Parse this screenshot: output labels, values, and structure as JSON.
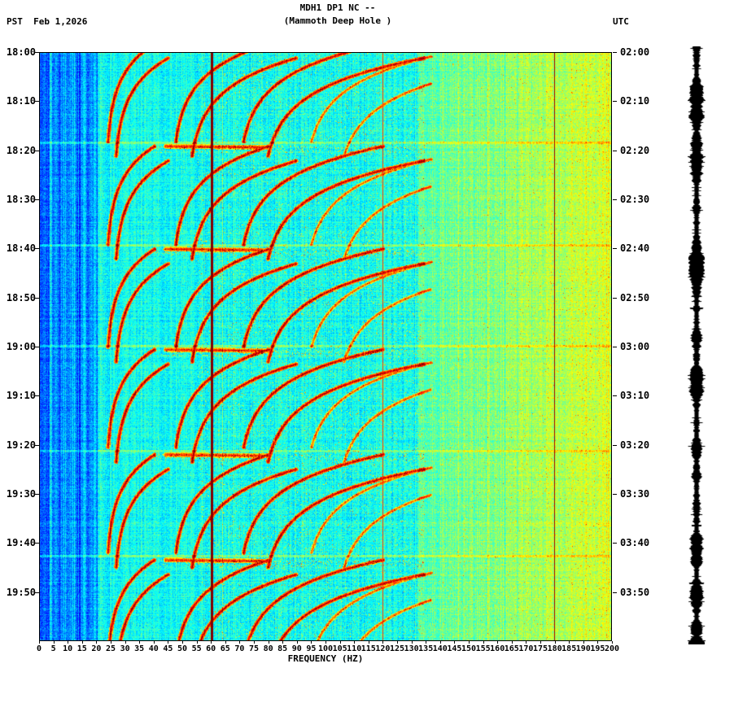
{
  "header": {
    "title_line1": "MDH1 DP1 NC --",
    "title_line2": "(Mammoth Deep Hole )",
    "left_label": "PST  Feb 1,2026",
    "right_label": "UTC"
  },
  "chart_data": {
    "type": "heatmap",
    "title": "MDH1 DP1 NC -- (Mammoth Deep Hole )",
    "xlabel": "FREQUENCY (HZ)",
    "colormap": "jet",
    "x_axis": {
      "min": 0,
      "max": 200,
      "ticks": [
        "0",
        "5",
        "10",
        "15",
        "20",
        "25",
        "30",
        "35",
        "40",
        "45",
        "50",
        "55",
        "60",
        "65",
        "70",
        "75",
        "80",
        "85",
        "90",
        "95",
        "100",
        "105",
        "110",
        "115",
        "120",
        "125",
        "130",
        "135",
        "140",
        "145",
        "150",
        "155",
        "160",
        "165",
        "170",
        "175",
        "180",
        "185",
        "190",
        "195",
        "200"
      ]
    },
    "y_axis": {
      "left_timezone": "PST",
      "right_timezone": "UTC",
      "date": "Feb 1,2026",
      "minutes_per_division": 10,
      "time_span_min": 120,
      "left_times": [
        "18:00",
        "18:10",
        "18:20",
        "18:30",
        "18:40",
        "18:50",
        "19:00",
        "19:10",
        "19:20",
        "19:30",
        "19:40",
        "19:50"
      ],
      "right_times": [
        "02:00",
        "02:10",
        "02:20",
        "02:30",
        "02:40",
        "02:50",
        "03:00",
        "03:10",
        "03:20",
        "03:30",
        "03:40",
        "03:50"
      ]
    },
    "features": {
      "background_profile": "dark blue 0-3 Hz, blue 3-20 Hz, cyan 20-130 Hz, green-yellow 130-200 Hz",
      "power_line_hz": 60,
      "power_line_harmonic_hz": 120,
      "faint_vertical_line_hz": 180,
      "tremor_onsets_min": [
        -2,
        19,
        40,
        60.5,
        82,
        103.5
      ],
      "glide_fundamental_start_hz": 40,
      "glide_fundamental_end_hz": 23,
      "glide_harmonics": 4,
      "glide_duration_min": 20,
      "onset_band_hz": [
        44,
        80
      ]
    },
    "trace": {
      "description": "seismogram amplitude trace",
      "color": "#000000"
    }
  }
}
